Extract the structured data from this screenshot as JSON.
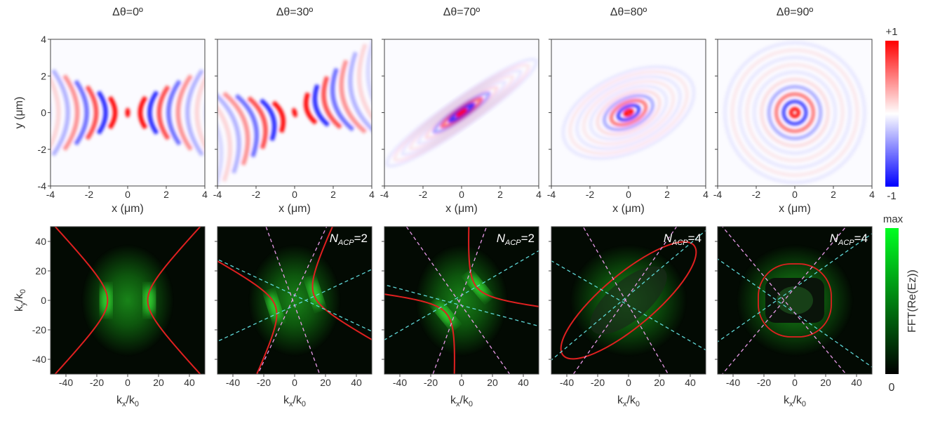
{
  "chart_data": [
    {
      "type": "heatmap",
      "row": "top",
      "title": "Δθ=0º",
      "xlabel": "x (μm)",
      "ylabel": "y (μm)",
      "xlim": [
        -4,
        4
      ],
      "ylim": [
        -4,
        4
      ],
      "xticks": [
        "-4",
        "-2",
        "0",
        "2",
        "4"
      ],
      "yticks": [
        "-4",
        "-2",
        "0",
        "2",
        "4"
      ],
      "pattern": "hyperbolic-fringes",
      "tilt_deg": 0
    },
    {
      "type": "heatmap",
      "row": "top",
      "title": "Δθ=30º",
      "xlabel": "x (μm)",
      "xlim": [
        -4,
        4
      ],
      "ylim": [
        -4,
        4
      ],
      "xticks": [
        "-4",
        "-2",
        "0",
        "2",
        "4"
      ],
      "pattern": "hyperbolic-fringes",
      "tilt_deg": 30
    },
    {
      "type": "heatmap",
      "row": "top",
      "title": "Δθ=70º",
      "xlabel": "x (μm)",
      "xlim": [
        -4,
        4
      ],
      "ylim": [
        -4,
        4
      ],
      "xticks": [
        "-4",
        "-2",
        "0",
        "2",
        "4"
      ],
      "pattern": "elongated-ellipse-fringes",
      "tilt_deg": 35
    },
    {
      "type": "heatmap",
      "row": "top",
      "title": "Δθ=80º",
      "xlabel": "x (μm)",
      "xlim": [
        -4,
        4
      ],
      "ylim": [
        -4,
        4
      ],
      "xticks": [
        "-4",
        "-2",
        "0",
        "2",
        "4"
      ],
      "pattern": "elliptical-rings",
      "tilt_deg": 25
    },
    {
      "type": "heatmap",
      "row": "top",
      "title": "Δθ=90º",
      "xlabel": "x (μm)",
      "xlim": [
        -4,
        4
      ],
      "ylim": [
        -4,
        4
      ],
      "xticks": [
        "-4",
        "-2",
        "0",
        "2",
        "4"
      ],
      "pattern": "circular-rings",
      "tilt_deg": 0
    },
    {
      "type": "heatmap",
      "row": "bottom",
      "annotation": "",
      "xlabel": "kx/k0",
      "ylabel": "ky/k0",
      "xlim": [
        -50,
        50
      ],
      "ylim": [
        -50,
        50
      ],
      "xticks": [
        "-40",
        "-20",
        "0",
        "20",
        "40"
      ],
      "yticks": [
        "40",
        "20",
        "0",
        "-20",
        "-40"
      ],
      "contour": "hyperbola"
    },
    {
      "type": "heatmap",
      "row": "bottom",
      "annotation": "N_ACP=2",
      "xlabel": "kx/k0",
      "xlim": [
        -50,
        50
      ],
      "ylim": [
        -50,
        50
      ],
      "xticks": [
        "-40",
        "-20",
        "0",
        "20",
        "40"
      ],
      "contour": "hyperbola"
    },
    {
      "type": "heatmap",
      "row": "bottom",
      "annotation": "N_ACP=2",
      "xlabel": "kx/k0",
      "xlim": [
        -50,
        50
      ],
      "ylim": [
        -50,
        50
      ],
      "xticks": [
        "-40",
        "-20",
        "0",
        "20",
        "40"
      ],
      "contour": "hyperbola"
    },
    {
      "type": "heatmap",
      "row": "bottom",
      "annotation": "N_ACP=4",
      "xlabel": "kx/k0",
      "xlim": [
        -50,
        50
      ],
      "ylim": [
        -50,
        50
      ],
      "xticks": [
        "-40",
        "-20",
        "0",
        "20",
        "40"
      ],
      "contour": "ellipse"
    },
    {
      "type": "heatmap",
      "row": "bottom",
      "annotation": "N_ACP=4",
      "xlabel": "kx/k0",
      "xlim": [
        -50,
        50
      ],
      "ylim": [
        -50,
        50
      ],
      "xticks": [
        "-40",
        "-20",
        "0",
        "20",
        "40"
      ],
      "contour": "ellipse"
    }
  ],
  "colorbar_top": {
    "max_label": "+1",
    "min_label": "-1",
    "colors": [
      "#0000ff",
      "#ffffff",
      "#ff0000"
    ]
  },
  "colorbar_bottom": {
    "max_label": "max",
    "min_label": "0",
    "title": "FFT(Re(Ez))",
    "colors": [
      "#000000",
      "#00ff22"
    ]
  },
  "annotation_parts": {
    "N": "N",
    "sub": "ACP",
    "value": "=2",
    "value4": "=4"
  },
  "colors": {
    "contour": "#e02020",
    "dash_cyan": "#5fd8d8",
    "dash_pink": "#e89ae8"
  }
}
